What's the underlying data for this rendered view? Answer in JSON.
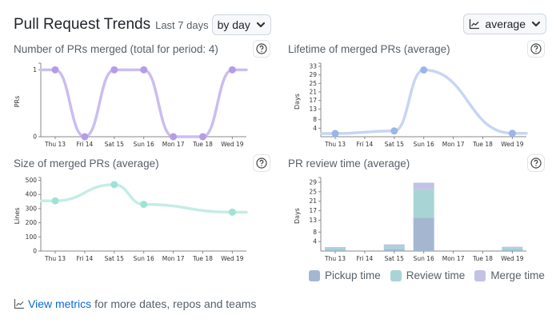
{
  "header": {
    "title": "Pull Request Trends",
    "period": "Last 7 days",
    "granularity_select": "by day",
    "aggregation_select": "average"
  },
  "footer": {
    "link": "View metrics",
    "rest": "for more dates, repos and teams"
  },
  "colors": {
    "merged_line": "#cbbdf0",
    "merged_point": "#b59ce6",
    "lifetime_line": "#c7d6f1",
    "lifetime_point": "#9ab6e8",
    "size_line": "#c4ede6",
    "size_point": "#9fe3d6",
    "pickup": "#a5b7d0",
    "review": "#a9d4d5",
    "merge": "#c3c2e4"
  },
  "chart_data": [
    {
      "id": "merged",
      "type": "line",
      "title": "Number of PRs merged (total for period: 4)",
      "ylabel": "PRs",
      "categories": [
        "Thu 13",
        "Fri 14",
        "Sat 15",
        "Sun 16",
        "Mon 17",
        "Tue 18",
        "Wed 19"
      ],
      "values": [
        1,
        0,
        1,
        1,
        0,
        0,
        1
      ],
      "yticks": [
        0,
        1
      ],
      "ylim": [
        0,
        1.1
      ]
    },
    {
      "id": "lifetime",
      "type": "line",
      "title": "Lifetime of merged PRs (average)",
      "ylabel": "Days",
      "categories": [
        "Thu 13",
        "Fri 14",
        "Sat 15",
        "Sun 16",
        "Mon 17",
        "Tue 18",
        "Wed 19"
      ],
      "points": [
        [
          0,
          1.5
        ],
        [
          2,
          2.7
        ],
        [
          3,
          31.3
        ],
        [
          6,
          1.6
        ]
      ],
      "yticks": [
        4,
        8,
        13,
        17,
        21,
        25,
        29,
        33
      ],
      "ylim": [
        0,
        34.5
      ]
    },
    {
      "id": "size",
      "type": "line",
      "title": "Size of merged PRs (average)",
      "ylabel": "Lines",
      "categories": [
        "Thu 13",
        "Fri 14",
        "Sat 15",
        "Sun 16",
        "Mon 17",
        "Tue 18",
        "Wed 19"
      ],
      "points": [
        [
          0,
          355
        ],
        [
          2,
          470
        ],
        [
          3,
          330
        ],
        [
          6,
          275
        ]
      ],
      "yticks": [
        0,
        100,
        200,
        300,
        400,
        500
      ],
      "ylim": [
        0,
        520
      ]
    },
    {
      "id": "review",
      "type": "bar",
      "title": "PR review time (average)",
      "ylabel": "Days",
      "categories": [
        "Thu 13",
        "Fri 14",
        "Sat 15",
        "Sun 16",
        "Mon 17",
        "Tue 18",
        "Wed 19"
      ],
      "yticks": [
        4,
        8,
        13,
        17,
        21,
        25,
        29
      ],
      "ylim": [
        0,
        31
      ],
      "series": [
        {
          "name": "Pickup time",
          "values": [
            0.5,
            0,
            0.8,
            14.0,
            0,
            0,
            0.5
          ]
        },
        {
          "name": "Review time",
          "values": [
            1.0,
            0,
            1.2,
            12.0,
            0,
            0,
            1.0
          ]
        },
        {
          "name": "Merge time",
          "values": [
            0.2,
            0,
            0.8,
            2.8,
            0,
            0,
            0.3
          ]
        }
      ]
    }
  ]
}
